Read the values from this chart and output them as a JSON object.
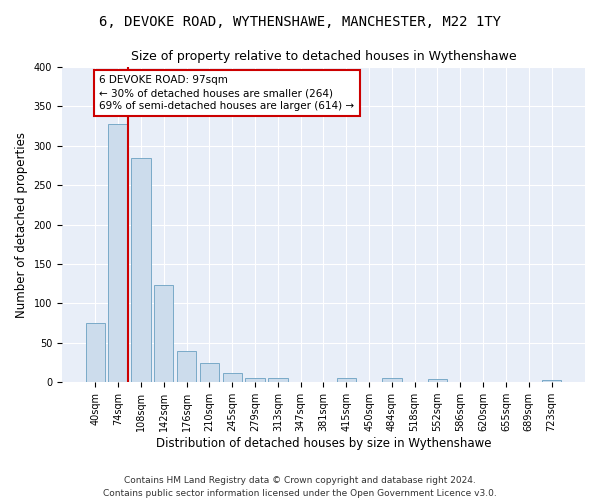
{
  "title": "6, DEVOKE ROAD, WYTHENSHAWE, MANCHESTER, M22 1TY",
  "subtitle": "Size of property relative to detached houses in Wythenshawe",
  "xlabel": "Distribution of detached houses by size in Wythenshawe",
  "ylabel": "Number of detached properties",
  "bar_labels": [
    "40sqm",
    "74sqm",
    "108sqm",
    "142sqm",
    "176sqm",
    "210sqm",
    "245sqm",
    "279sqm",
    "313sqm",
    "347sqm",
    "381sqm",
    "415sqm",
    "450sqm",
    "484sqm",
    "518sqm",
    "552sqm",
    "586sqm",
    "620sqm",
    "655sqm",
    "689sqm",
    "723sqm"
  ],
  "bar_values": [
    75,
    328,
    284,
    123,
    39,
    24,
    12,
    5,
    5,
    0,
    0,
    5,
    0,
    5,
    0,
    4,
    0,
    0,
    0,
    0,
    3
  ],
  "bar_color": "#ccdcec",
  "bar_edge_color": "#7aaac8",
  "annotation_text": "6 DEVOKE ROAD: 97sqm\n← 30% of detached houses are smaller (264)\n69% of semi-detached houses are larger (614) →",
  "vline_color": "#cc0000",
  "annotation_box_facecolor": "#ffffff",
  "annotation_box_edgecolor": "#cc0000",
  "footer_line1": "Contains HM Land Registry data © Crown copyright and database right 2024.",
  "footer_line2": "Contains public sector information licensed under the Open Government Licence v3.0.",
  "ylim": [
    0,
    400
  ],
  "yticks": [
    0,
    50,
    100,
    150,
    200,
    250,
    300,
    350,
    400
  ],
  "vline_x": 1.45,
  "figsize": [
    6.0,
    5.0
  ],
  "dpi": 100,
  "bg_color": "#e8eef8",
  "grid_color": "#ffffff",
  "title_fontsize": 10,
  "subtitle_fontsize": 9,
  "ylabel_fontsize": 8.5,
  "xlabel_fontsize": 8.5,
  "tick_fontsize": 7,
  "annotation_fontsize": 7.5,
  "footer_fontsize": 6.5
}
